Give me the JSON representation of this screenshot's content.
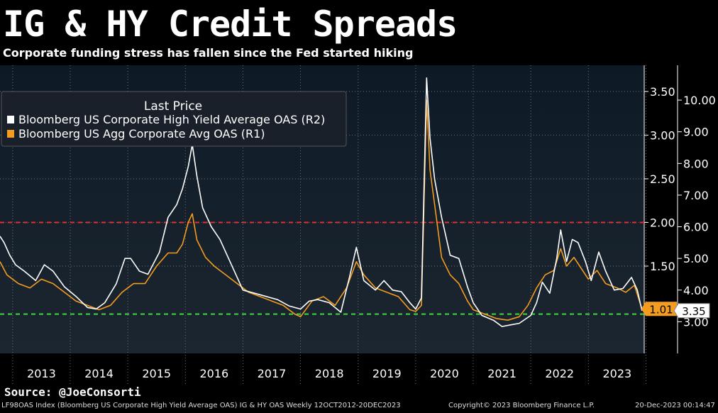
{
  "header": {
    "title": "IG & HY Credit Spreads",
    "subtitle": "Corporate funding stress has fallen since the Fed started hiking"
  },
  "footer": {
    "source": "Source: @JoeConsorti",
    "index_line": "LF98OAS Index (Bloomberg US Corporate High Yield Average OAS) IG & HY OAS  Weekly 12OCT2012-20DEC2023",
    "copyright": "Copyright© 2023 Bloomberg Finance L.P.",
    "timestamp": "20-Dec-2023 00:14:47"
  },
  "chart_data": {
    "type": "line",
    "legend": {
      "title": "Last Price",
      "position": "top-left",
      "items": [
        {
          "label": "Bloomberg US Corporate High Yield Average OAS  (R2)",
          "color": "#ffffff"
        },
        {
          "label": "Bloomberg US Agg Corporate Avg OAS  (R1)",
          "color": "#f39c1f"
        }
      ]
    },
    "x_axis": {
      "ticks": [
        "2013",
        "2014",
        "2015",
        "2016",
        "2017",
        "2018",
        "2019",
        "2020",
        "2021",
        "2022",
        "2023"
      ],
      "range": [
        2012.78,
        2023.97
      ]
    },
    "y_axis_r1": {
      "ticks": [
        "1.50",
        "2.00",
        "2.50",
        "3.00",
        "3.50"
      ],
      "range": [
        0.5,
        3.8
      ]
    },
    "y_axis_r2": {
      "ticks": [
        "3.00",
        "4.00",
        "5.00",
        "6.00",
        "7.00",
        "8.00",
        "9.00",
        "10.00"
      ],
      "range": [
        2.0,
        11.1
      ]
    },
    "reference_lines": [
      {
        "axis": "r1",
        "value": 2.0,
        "color": "#e03030",
        "style": "dashed"
      },
      {
        "axis": "r1",
        "value": 0.95,
        "color": "#3ddc3d",
        "style": "dashed"
      }
    ],
    "last_values": [
      {
        "series": "IG",
        "axis": "r1",
        "label": "1.01",
        "color": "#f39c1f"
      },
      {
        "series": "HY",
        "axis": "r2",
        "label": "3.35",
        "color": "#ffffff"
      }
    ],
    "series": [
      {
        "name": "Bloomberg US Corporate High Yield Average OAS  (R2)",
        "axis": "r2",
        "color": "#ffffff",
        "points": [
          [
            2012.78,
            5.7
          ],
          [
            2012.85,
            5.5
          ],
          [
            2012.95,
            5.1
          ],
          [
            2013.05,
            4.8
          ],
          [
            2013.2,
            4.6
          ],
          [
            2013.4,
            4.3
          ],
          [
            2013.55,
            4.8
          ],
          [
            2013.7,
            4.6
          ],
          [
            2013.9,
            4.1
          ],
          [
            2014.1,
            3.8
          ],
          [
            2014.3,
            3.45
          ],
          [
            2014.45,
            3.4
          ],
          [
            2014.6,
            3.6
          ],
          [
            2014.8,
            4.2
          ],
          [
            2014.95,
            5.0
          ],
          [
            2015.05,
            5.0
          ],
          [
            2015.2,
            4.6
          ],
          [
            2015.35,
            4.5
          ],
          [
            2015.55,
            5.2
          ],
          [
            2015.7,
            6.3
          ],
          [
            2015.85,
            6.7
          ],
          [
            2015.95,
            7.2
          ],
          [
            2016.05,
            7.9
          ],
          [
            2016.12,
            8.6
          ],
          [
            2016.2,
            7.6
          ],
          [
            2016.3,
            6.6
          ],
          [
            2016.45,
            6.0
          ],
          [
            2016.6,
            5.6
          ],
          [
            2016.8,
            4.8
          ],
          [
            2017.0,
            4.0
          ],
          [
            2017.2,
            3.9
          ],
          [
            2017.4,
            3.8
          ],
          [
            2017.6,
            3.7
          ],
          [
            2017.8,
            3.5
          ],
          [
            2018.0,
            3.4
          ],
          [
            2018.15,
            3.65
          ],
          [
            2018.3,
            3.7
          ],
          [
            2018.5,
            3.6
          ],
          [
            2018.7,
            3.3
          ],
          [
            2018.85,
            4.4
          ],
          [
            2018.97,
            5.35
          ],
          [
            2019.1,
            4.3
          ],
          [
            2019.3,
            4.0
          ],
          [
            2019.45,
            4.3
          ],
          [
            2019.6,
            4.0
          ],
          [
            2019.75,
            3.95
          ],
          [
            2019.9,
            3.6
          ],
          [
            2020.0,
            3.4
          ],
          [
            2020.1,
            3.75
          ],
          [
            2020.19,
            10.7
          ],
          [
            2020.25,
            8.8
          ],
          [
            2020.33,
            7.5
          ],
          [
            2020.45,
            6.3
          ],
          [
            2020.6,
            5.1
          ],
          [
            2020.75,
            5.0
          ],
          [
            2020.9,
            4.1
          ],
          [
            2021.0,
            3.6
          ],
          [
            2021.15,
            3.2
          ],
          [
            2021.35,
            3.05
          ],
          [
            2021.5,
            2.85
          ],
          [
            2021.65,
            2.9
          ],
          [
            2021.8,
            2.95
          ],
          [
            2021.92,
            3.1
          ],
          [
            2022.0,
            3.2
          ],
          [
            2022.1,
            3.6
          ],
          [
            2022.2,
            4.25
          ],
          [
            2022.33,
            3.9
          ],
          [
            2022.45,
            5.0
          ],
          [
            2022.52,
            5.9
          ],
          [
            2022.62,
            4.9
          ],
          [
            2022.72,
            5.6
          ],
          [
            2022.82,
            5.5
          ],
          [
            2022.95,
            4.9
          ],
          [
            2023.05,
            4.3
          ],
          [
            2023.18,
            5.2
          ],
          [
            2023.3,
            4.6
          ],
          [
            2023.45,
            4.0
          ],
          [
            2023.6,
            4.05
          ],
          [
            2023.75,
            4.4
          ],
          [
            2023.85,
            4.0
          ],
          [
            2023.93,
            3.35
          ]
        ]
      },
      {
        "name": "Bloomberg US Agg Corporate Avg OAS  (R1)",
        "axis": "r1",
        "color": "#f39c1f",
        "points": [
          [
            2012.78,
            1.55
          ],
          [
            2012.9,
            1.4
          ],
          [
            2013.1,
            1.3
          ],
          [
            2013.3,
            1.25
          ],
          [
            2013.5,
            1.35
          ],
          [
            2013.7,
            1.3
          ],
          [
            2013.9,
            1.2
          ],
          [
            2014.1,
            1.1
          ],
          [
            2014.3,
            1.05
          ],
          [
            2014.5,
            1.0
          ],
          [
            2014.7,
            1.05
          ],
          [
            2014.9,
            1.2
          ],
          [
            2015.1,
            1.3
          ],
          [
            2015.3,
            1.3
          ],
          [
            2015.5,
            1.5
          ],
          [
            2015.7,
            1.65
          ],
          [
            2015.85,
            1.65
          ],
          [
            2015.95,
            1.75
          ],
          [
            2016.05,
            2.0
          ],
          [
            2016.12,
            2.1
          ],
          [
            2016.2,
            1.8
          ],
          [
            2016.35,
            1.6
          ],
          [
            2016.5,
            1.5
          ],
          [
            2016.7,
            1.4
          ],
          [
            2016.9,
            1.3
          ],
          [
            2017.1,
            1.2
          ],
          [
            2017.3,
            1.15
          ],
          [
            2017.5,
            1.1
          ],
          [
            2017.7,
            1.05
          ],
          [
            2017.9,
            0.95
          ],
          [
            2018.0,
            0.92
          ],
          [
            2018.2,
            1.1
          ],
          [
            2018.4,
            1.15
          ],
          [
            2018.6,
            1.05
          ],
          [
            2018.8,
            1.25
          ],
          [
            2018.97,
            1.55
          ],
          [
            2019.1,
            1.4
          ],
          [
            2019.3,
            1.25
          ],
          [
            2019.5,
            1.2
          ],
          [
            2019.7,
            1.15
          ],
          [
            2019.9,
            1.0
          ],
          [
            2020.0,
            0.98
          ],
          [
            2020.1,
            1.05
          ],
          [
            2020.19,
            3.4
          ],
          [
            2020.25,
            2.6
          ],
          [
            2020.35,
            2.1
          ],
          [
            2020.45,
            1.6
          ],
          [
            2020.6,
            1.4
          ],
          [
            2020.75,
            1.3
          ],
          [
            2020.9,
            1.1
          ],
          [
            2021.0,
            1.0
          ],
          [
            2021.2,
            0.95
          ],
          [
            2021.4,
            0.9
          ],
          [
            2021.6,
            0.88
          ],
          [
            2021.8,
            0.92
          ],
          [
            2021.95,
            1.05
          ],
          [
            2022.1,
            1.25
          ],
          [
            2022.25,
            1.4
          ],
          [
            2022.4,
            1.45
          ],
          [
            2022.52,
            1.7
          ],
          [
            2022.62,
            1.5
          ],
          [
            2022.75,
            1.6
          ],
          [
            2022.85,
            1.5
          ],
          [
            2023.0,
            1.35
          ],
          [
            2023.15,
            1.45
          ],
          [
            2023.3,
            1.3
          ],
          [
            2023.5,
            1.25
          ],
          [
            2023.65,
            1.2
          ],
          [
            2023.8,
            1.28
          ],
          [
            2023.93,
            1.01
          ]
        ]
      }
    ]
  }
}
